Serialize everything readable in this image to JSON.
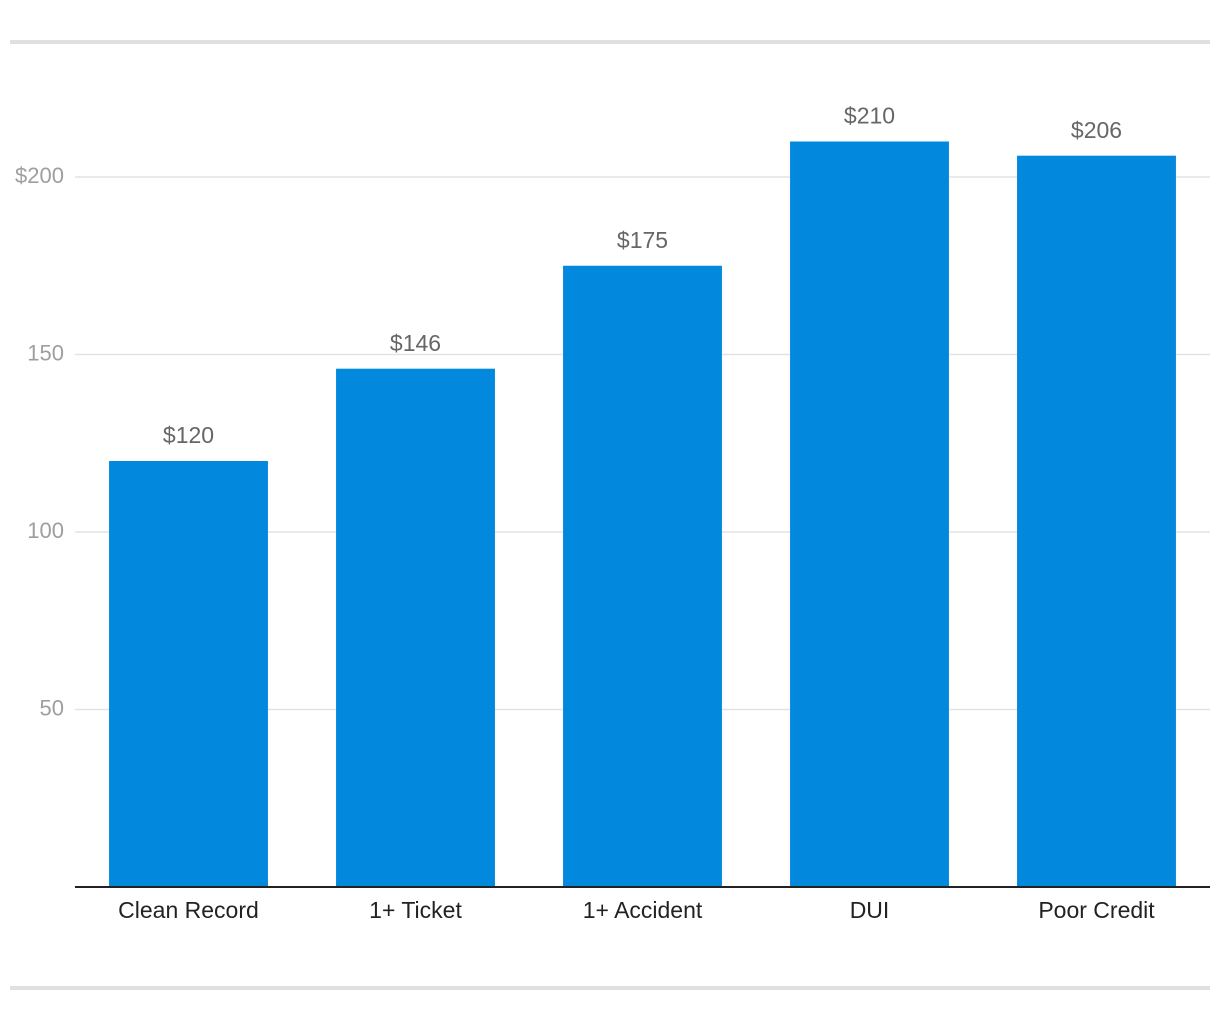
{
  "chart_data": {
    "type": "bar",
    "categories": [
      "Clean Record",
      "1+ Ticket",
      "1+ Accident",
      "DUI",
      "Poor Credit"
    ],
    "values": [
      120,
      146,
      175,
      210,
      206
    ],
    "value_labels": [
      "$120",
      "$146",
      "$175",
      "$210",
      "$206"
    ],
    "color": "#0288dd",
    "ylim": [
      0,
      230
    ],
    "yticks": [
      50,
      100,
      150,
      {
        "value": 200,
        "label": "$200"
      }
    ],
    "grid": true
  }
}
